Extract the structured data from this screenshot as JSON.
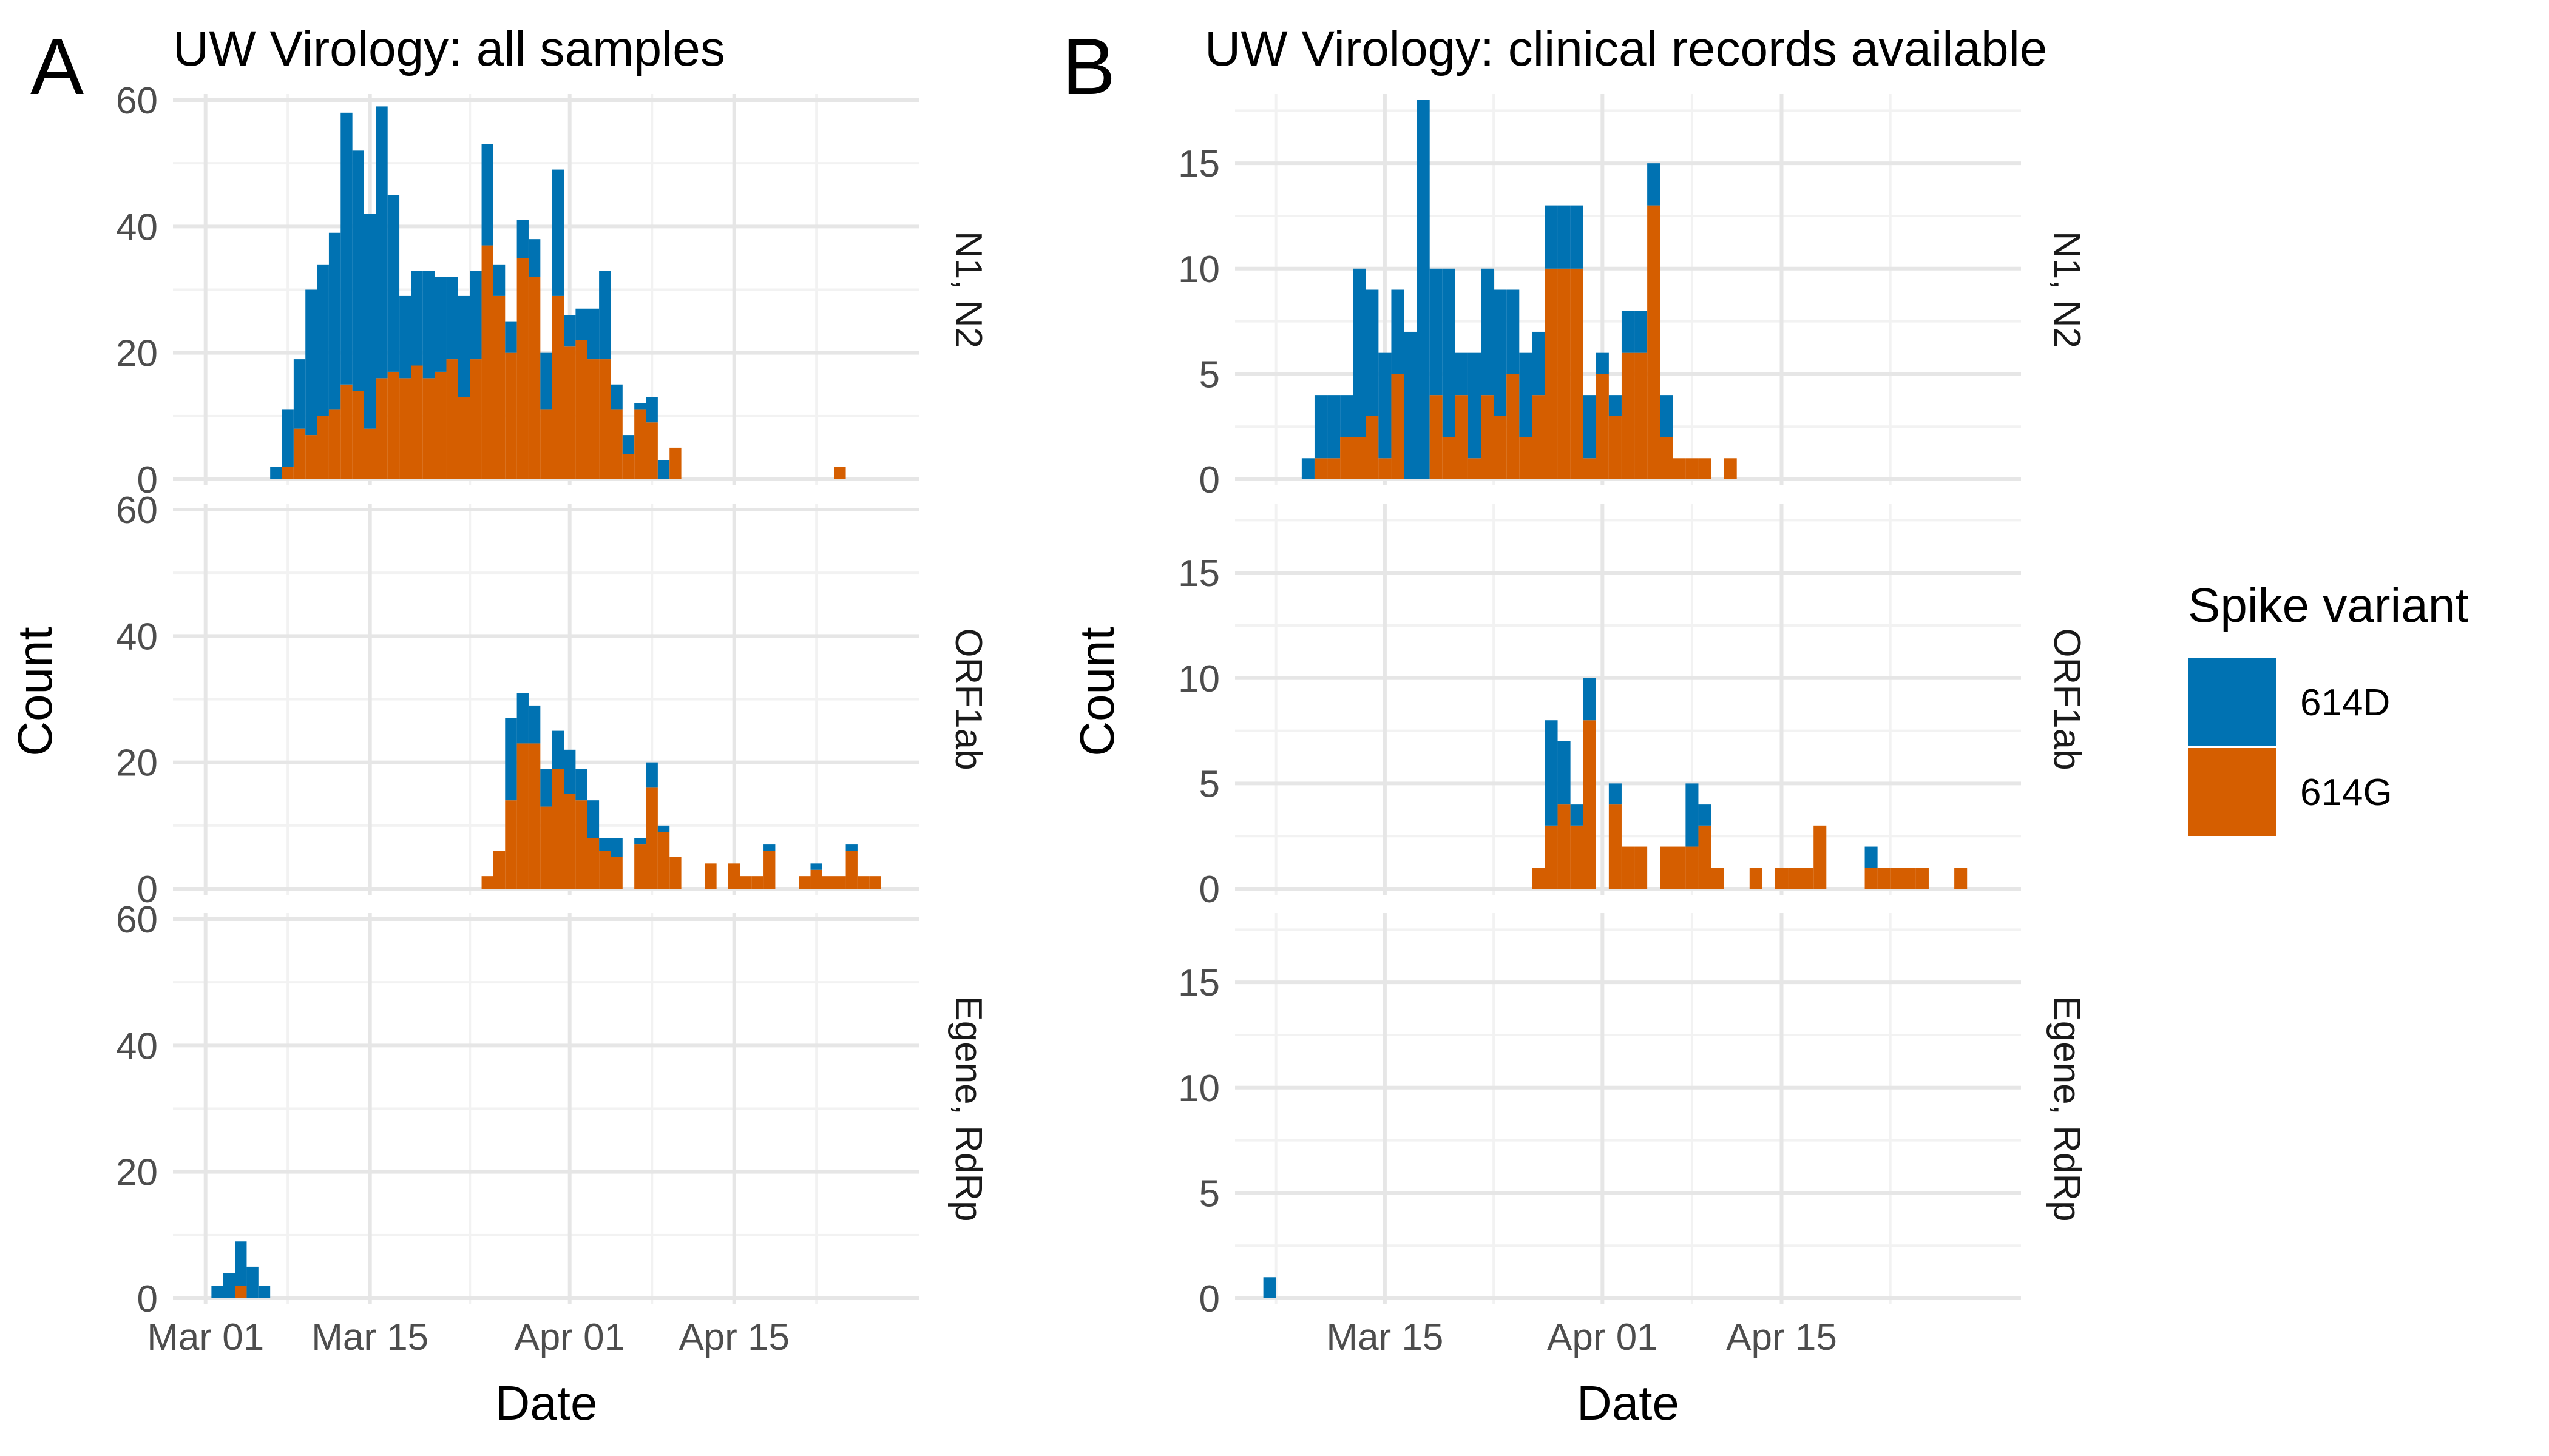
{
  "legend": {
    "title": "Spike variant",
    "items": [
      {
        "label": "614D",
        "color": "#0072B2"
      },
      {
        "label": "614G",
        "color": "#D55E00"
      }
    ]
  },
  "chart_data": [
    {
      "type": "bar",
      "stacked": true,
      "panel_label": "A",
      "title": "UW Virology: all samples",
      "xlabel": "Date",
      "ylabel": "Count",
      "x_ticks": [
        "Mar 01",
        "Mar 15",
        "Apr 01",
        "Apr 15"
      ],
      "x_range": [
        "2020-02-28",
        "2020-04-30"
      ],
      "ylim": [
        0,
        60
      ],
      "y_ticks": [
        0,
        20,
        40,
        60
      ],
      "bin_width_days": 1,
      "grid": true,
      "facets": [
        {
          "strip": "N1, N2",
          "bars": [
            {
              "date": "2020-03-07",
              "614D": 2,
              "614G": 0
            },
            {
              "date": "2020-03-08",
              "614D": 9,
              "614G": 2
            },
            {
              "date": "2020-03-09",
              "614D": 11,
              "614G": 8
            },
            {
              "date": "2020-03-10",
              "614D": 23,
              "614G": 7
            },
            {
              "date": "2020-03-11",
              "614D": 24,
              "614G": 10
            },
            {
              "date": "2020-03-12",
              "614D": 28,
              "614G": 11
            },
            {
              "date": "2020-03-13",
              "614D": 43,
              "614G": 15
            },
            {
              "date": "2020-03-14",
              "614D": 38,
              "614G": 14
            },
            {
              "date": "2020-03-15",
              "614D": 34,
              "614G": 8
            },
            {
              "date": "2020-03-16",
              "614D": 43,
              "614G": 16
            },
            {
              "date": "2020-03-17",
              "614D": 28,
              "614G": 17
            },
            {
              "date": "2020-03-18",
              "614D": 13,
              "614G": 16
            },
            {
              "date": "2020-03-19",
              "614D": 15,
              "614G": 18
            },
            {
              "date": "2020-03-20",
              "614D": 17,
              "614G": 16
            },
            {
              "date": "2020-03-21",
              "614D": 15,
              "614G": 17
            },
            {
              "date": "2020-03-22",
              "614D": 13,
              "614G": 19
            },
            {
              "date": "2020-03-23",
              "614D": 16,
              "614G": 13
            },
            {
              "date": "2020-03-24",
              "614D": 14,
              "614G": 19
            },
            {
              "date": "2020-03-25",
              "614D": 16,
              "614G": 37
            },
            {
              "date": "2020-03-26",
              "614D": 5,
              "614G": 29
            },
            {
              "date": "2020-03-27",
              "614D": 5,
              "614G": 20
            },
            {
              "date": "2020-03-28",
              "614D": 6,
              "614G": 35
            },
            {
              "date": "2020-03-29",
              "614D": 6,
              "614G": 32
            },
            {
              "date": "2020-03-30",
              "614D": 9,
              "614G": 11
            },
            {
              "date": "2020-03-31",
              "614D": 20,
              "614G": 29
            },
            {
              "date": "2020-04-01",
              "614D": 5,
              "614G": 21
            },
            {
              "date": "2020-04-02",
              "614D": 5,
              "614G": 22
            },
            {
              "date": "2020-04-03",
              "614D": 8,
              "614G": 19
            },
            {
              "date": "2020-04-04",
              "614D": 14,
              "614G": 19
            },
            {
              "date": "2020-04-05",
              "614D": 4,
              "614G": 11
            },
            {
              "date": "2020-04-06",
              "614D": 3,
              "614G": 4
            },
            {
              "date": "2020-04-07",
              "614D": 1,
              "614G": 11
            },
            {
              "date": "2020-04-08",
              "614D": 4,
              "614G": 9
            },
            {
              "date": "2020-04-09",
              "614D": 3,
              "614G": 0
            },
            {
              "date": "2020-04-10",
              "614D": 0,
              "614G": 5
            },
            {
              "date": "2020-04-24",
              "614D": 0,
              "614G": 2
            }
          ]
        },
        {
          "strip": "ORF1ab",
          "bars": [
            {
              "date": "2020-03-25",
              "614D": 0,
              "614G": 2
            },
            {
              "date": "2020-03-26",
              "614D": 0,
              "614G": 6
            },
            {
              "date": "2020-03-27",
              "614D": 13,
              "614G": 14
            },
            {
              "date": "2020-03-28",
              "614D": 8,
              "614G": 23
            },
            {
              "date": "2020-03-29",
              "614D": 6,
              "614G": 23
            },
            {
              "date": "2020-03-30",
              "614D": 6,
              "614G": 13
            },
            {
              "date": "2020-03-31",
              "614D": 6,
              "614G": 19
            },
            {
              "date": "2020-04-01",
              "614D": 7,
              "614G": 15
            },
            {
              "date": "2020-04-02",
              "614D": 5,
              "614G": 14
            },
            {
              "date": "2020-04-03",
              "614D": 6,
              "614G": 8
            },
            {
              "date": "2020-04-04",
              "614D": 2,
              "614G": 6
            },
            {
              "date": "2020-04-05",
              "614D": 3,
              "614G": 5
            },
            {
              "date": "2020-04-07",
              "614D": 1,
              "614G": 7
            },
            {
              "date": "2020-04-08",
              "614D": 4,
              "614G": 16
            },
            {
              "date": "2020-04-09",
              "614D": 1,
              "614G": 9
            },
            {
              "date": "2020-04-10",
              "614D": 0,
              "614G": 5
            },
            {
              "date": "2020-04-13",
              "614D": 0,
              "614G": 4
            },
            {
              "date": "2020-04-15",
              "614D": 0,
              "614G": 4
            },
            {
              "date": "2020-04-16",
              "614D": 0,
              "614G": 2
            },
            {
              "date": "2020-04-17",
              "614D": 0,
              "614G": 2
            },
            {
              "date": "2020-04-18",
              "614D": 1,
              "614G": 6
            },
            {
              "date": "2020-04-21",
              "614D": 0,
              "614G": 2
            },
            {
              "date": "2020-04-22",
              "614D": 1,
              "614G": 3
            },
            {
              "date": "2020-04-23",
              "614D": 0,
              "614G": 2
            },
            {
              "date": "2020-04-24",
              "614D": 0,
              "614G": 2
            },
            {
              "date": "2020-04-25",
              "614D": 1,
              "614G": 6
            },
            {
              "date": "2020-04-26",
              "614D": 0,
              "614G": 2
            },
            {
              "date": "2020-04-27",
              "614D": 0,
              "614G": 2
            }
          ]
        },
        {
          "strip": "Egene, RdRp",
          "bars": [
            {
              "date": "2020-03-02",
              "614D": 2,
              "614G": 0
            },
            {
              "date": "2020-03-03",
              "614D": 4,
              "614G": 0
            },
            {
              "date": "2020-03-04",
              "614D": 7,
              "614G": 2
            },
            {
              "date": "2020-03-05",
              "614D": 5,
              "614G": 0
            },
            {
              "date": "2020-03-06",
              "614D": 2,
              "614G": 0
            }
          ]
        }
      ]
    },
    {
      "type": "bar",
      "stacked": true,
      "panel_label": "B",
      "title": "UW Virology: clinical records available",
      "xlabel": "Date",
      "ylabel": "Count",
      "x_ticks": [
        "Mar 15",
        "Apr 01",
        "Apr 15"
      ],
      "x_range": [
        "2020-03-04",
        "2020-05-03"
      ],
      "ylim": [
        0,
        18
      ],
      "y_ticks": [
        0,
        5,
        10,
        15
      ],
      "bin_width_days": 1,
      "grid": true,
      "facets": [
        {
          "strip": "N1, N2",
          "bars": [
            {
              "date": "2020-03-09",
              "614D": 1,
              "614G": 0
            },
            {
              "date": "2020-03-10",
              "614D": 3,
              "614G": 1
            },
            {
              "date": "2020-03-11",
              "614D": 3,
              "614G": 1
            },
            {
              "date": "2020-03-12",
              "614D": 2,
              "614G": 2
            },
            {
              "date": "2020-03-13",
              "614D": 8,
              "614G": 2
            },
            {
              "date": "2020-03-14",
              "614D": 6,
              "614G": 3
            },
            {
              "date": "2020-03-15",
              "614D": 5,
              "614G": 1
            },
            {
              "date": "2020-03-16",
              "614D": 4,
              "614G": 5
            },
            {
              "date": "2020-03-17",
              "614D": 7,
              "614G": 0
            },
            {
              "date": "2020-03-18",
              "614D": 18,
              "614G": 0
            },
            {
              "date": "2020-03-19",
              "614D": 6,
              "614G": 4
            },
            {
              "date": "2020-03-20",
              "614D": 8,
              "614G": 2
            },
            {
              "date": "2020-03-21",
              "614D": 2,
              "614G": 4
            },
            {
              "date": "2020-03-22",
              "614D": 5,
              "614G": 1
            },
            {
              "date": "2020-03-23",
              "614D": 6,
              "614G": 4
            },
            {
              "date": "2020-03-24",
              "614D": 6,
              "614G": 3
            },
            {
              "date": "2020-03-25",
              "614D": 4,
              "614G": 5
            },
            {
              "date": "2020-03-26",
              "614D": 4,
              "614G": 2
            },
            {
              "date": "2020-03-27",
              "614D": 3,
              "614G": 4
            },
            {
              "date": "2020-03-28",
              "614D": 3,
              "614G": 10
            },
            {
              "date": "2020-03-29",
              "614D": 3,
              "614G": 10
            },
            {
              "date": "2020-03-30",
              "614D": 3,
              "614G": 10
            },
            {
              "date": "2020-03-31",
              "614D": 3,
              "614G": 1
            },
            {
              "date": "2020-04-01",
              "614D": 1,
              "614G": 5
            },
            {
              "date": "2020-04-02",
              "614D": 1,
              "614G": 3
            },
            {
              "date": "2020-04-03",
              "614D": 2,
              "614G": 6
            },
            {
              "date": "2020-04-04",
              "614D": 2,
              "614G": 6
            },
            {
              "date": "2020-04-05",
              "614D": 2,
              "614G": 13
            },
            {
              "date": "2020-04-06",
              "614D": 2,
              "614G": 2
            },
            {
              "date": "2020-04-07",
              "614D": 0,
              "614G": 1
            },
            {
              "date": "2020-04-08",
              "614D": 0,
              "614G": 1
            },
            {
              "date": "2020-04-09",
              "614D": 0,
              "614G": 1
            },
            {
              "date": "2020-04-11",
              "614D": 0,
              "614G": 1
            }
          ]
        },
        {
          "strip": "ORF1ab",
          "bars": [
            {
              "date": "2020-03-27",
              "614D": 0,
              "614G": 1
            },
            {
              "date": "2020-03-28",
              "614D": 5,
              "614G": 3
            },
            {
              "date": "2020-03-29",
              "614D": 3,
              "614G": 4
            },
            {
              "date": "2020-03-30",
              "614D": 1,
              "614G": 3
            },
            {
              "date": "2020-03-31",
              "614D": 2,
              "614G": 8
            },
            {
              "date": "2020-04-02",
              "614D": 1,
              "614G": 4
            },
            {
              "date": "2020-04-03",
              "614D": 0,
              "614G": 2
            },
            {
              "date": "2020-04-04",
              "614D": 0,
              "614G": 2
            },
            {
              "date": "2020-04-06",
              "614D": 0,
              "614G": 2
            },
            {
              "date": "2020-04-07",
              "614D": 0,
              "614G": 2
            },
            {
              "date": "2020-04-08",
              "614D": 3,
              "614G": 2
            },
            {
              "date": "2020-04-09",
              "614D": 1,
              "614G": 3
            },
            {
              "date": "2020-04-10",
              "614D": 0,
              "614G": 1
            },
            {
              "date": "2020-04-13",
              "614D": 0,
              "614G": 1
            },
            {
              "date": "2020-04-15",
              "614D": 0,
              "614G": 1
            },
            {
              "date": "2020-04-16",
              "614D": 0,
              "614G": 1
            },
            {
              "date": "2020-04-17",
              "614D": 0,
              "614G": 1
            },
            {
              "date": "2020-04-18",
              "614D": 0,
              "614G": 3
            },
            {
              "date": "2020-04-22",
              "614D": 1,
              "614G": 1
            },
            {
              "date": "2020-04-23",
              "614D": 0,
              "614G": 1
            },
            {
              "date": "2020-04-24",
              "614D": 0,
              "614G": 1
            },
            {
              "date": "2020-04-25",
              "614D": 0,
              "614G": 1
            },
            {
              "date": "2020-04-26",
              "614D": 0,
              "614G": 1
            },
            {
              "date": "2020-04-29",
              "614D": 0,
              "614G": 1
            }
          ]
        },
        {
          "strip": "Egene, RdRp",
          "bars": [
            {
              "date": "2020-03-06",
              "614D": 1,
              "614G": 0
            }
          ]
        }
      ]
    }
  ]
}
